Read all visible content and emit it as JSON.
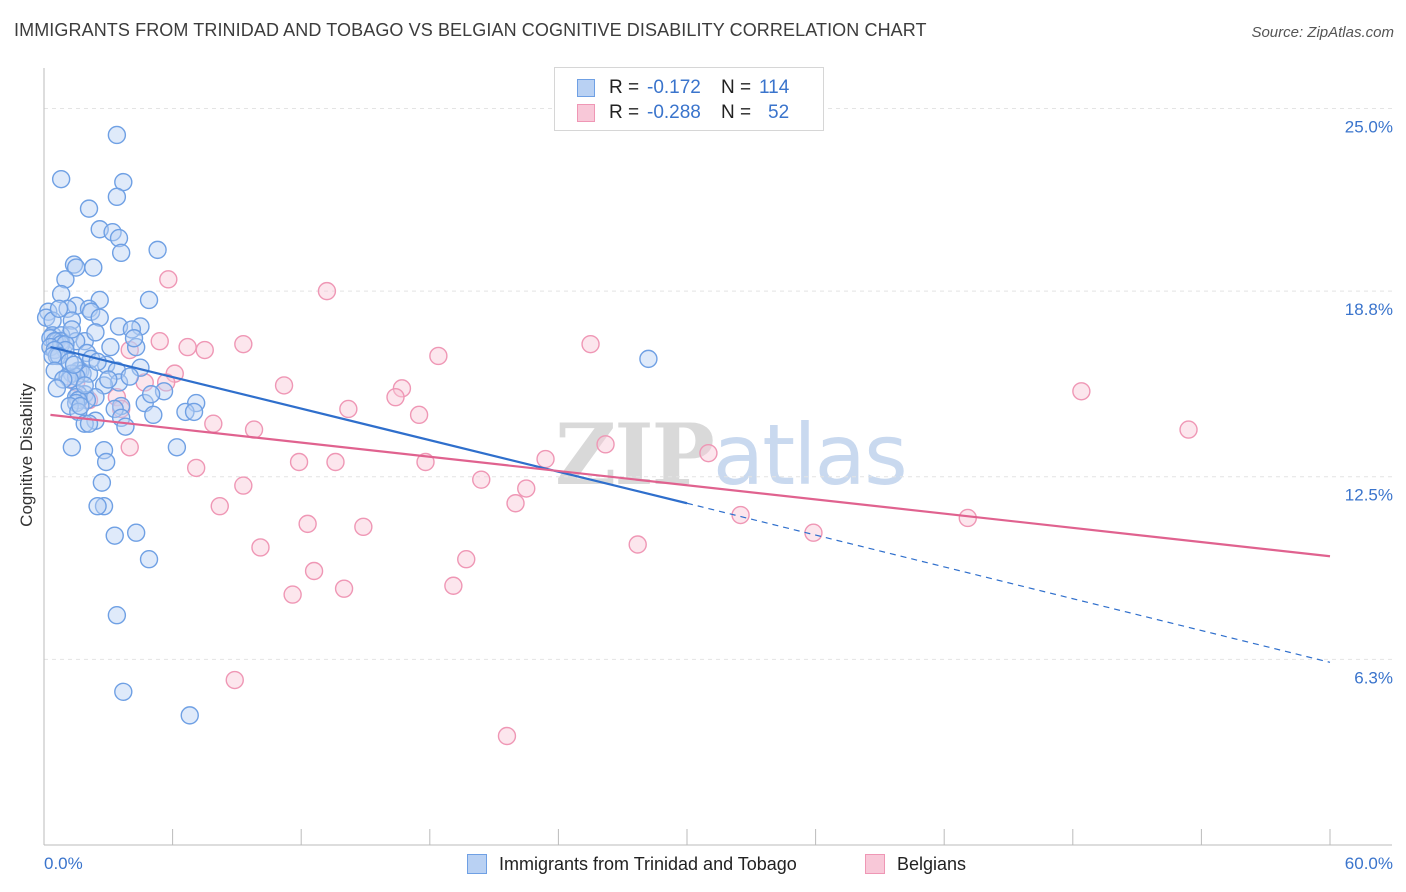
{
  "title": "IMMIGRANTS FROM TRINIDAD AND TOBAGO VS BELGIAN COGNITIVE DISABILITY CORRELATION CHART",
  "source": "Source: ZipAtlas.com",
  "watermark": {
    "zip": "ZIP",
    "atlas": "atlas"
  },
  "legend": {
    "r_label": "R =",
    "n_label": "N =",
    "rows": [
      {
        "name": "Immigrants from Trinidad and Tobago",
        "r": "-0.172",
        "n": "114"
      },
      {
        "name": "Belgians",
        "r": "-0.288",
        "n": "52"
      }
    ]
  },
  "colors": {
    "blue": "#6fa0e4",
    "blue_fill": "#b9d1f3",
    "blue_line": "#2f6fcc",
    "pink": "#ef97b5",
    "pink_fill": "#f8c8d8",
    "pink_line": "#e0628f",
    "tick_label": "#3a74cc"
  },
  "chart_data": {
    "type": "scatter",
    "title": "IMMIGRANTS FROM TRINIDAD AND TOBAGO VS BELGIAN COGNITIVE DISABILITY CORRELATION CHART",
    "xlabel": "",
    "ylabel": "Cognitive Disability",
    "xlim": [
      0,
      60
    ],
    "ylim": [
      0,
      26
    ],
    "x_tick_labels": [
      {
        "value": 0,
        "label": "0.0%"
      },
      {
        "value": 60,
        "label": "60.0%"
      }
    ],
    "y_ticks": [
      {
        "value": 6.3,
        "label": "6.3%"
      },
      {
        "value": 12.5,
        "label": "12.5%"
      },
      {
        "value": 18.8,
        "label": "18.8%"
      },
      {
        "value": 25.0,
        "label": "25.0%"
      }
    ],
    "grid": true,
    "series": [
      {
        "name": "Immigrants from Trinidad and Tobago",
        "color": "#6fa0e4",
        "trend": {
          "x_start": 0.3,
          "y_start": 16.9,
          "x_solid_end": 30.0,
          "y_solid_end": 11.6,
          "x_end": 60.0,
          "y_end": 6.2
        },
        "points": [
          [
            3.4,
            24.1
          ],
          [
            0.8,
            22.6
          ],
          [
            3.7,
            22.5
          ],
          [
            3.4,
            22.0
          ],
          [
            2.1,
            21.6
          ],
          [
            2.6,
            20.9
          ],
          [
            3.2,
            20.8
          ],
          [
            3.5,
            20.6
          ],
          [
            5.3,
            20.2
          ],
          [
            3.6,
            20.1
          ],
          [
            1.4,
            19.7
          ],
          [
            1.5,
            19.6
          ],
          [
            2.3,
            19.6
          ],
          [
            1.0,
            19.2
          ],
          [
            0.8,
            18.7
          ],
          [
            4.9,
            18.5
          ],
          [
            2.6,
            18.5
          ],
          [
            1.5,
            18.3
          ],
          [
            2.1,
            18.2
          ],
          [
            1.1,
            18.2
          ],
          [
            2.2,
            18.1
          ],
          [
            0.2,
            18.1
          ],
          [
            0.1,
            17.9
          ],
          [
            0.4,
            17.8
          ],
          [
            1.3,
            17.8
          ],
          [
            3.5,
            17.6
          ],
          [
            4.5,
            17.6
          ],
          [
            4.1,
            17.5
          ],
          [
            0.4,
            17.3
          ],
          [
            1.2,
            17.3
          ],
          [
            0.8,
            17.3
          ],
          [
            0.3,
            17.2
          ],
          [
            0.6,
            17.1
          ],
          [
            0.8,
            17.1
          ],
          [
            1.9,
            17.1
          ],
          [
            0.5,
            17.1
          ],
          [
            1.5,
            17.1
          ],
          [
            0.8,
            17.0
          ],
          [
            1.0,
            17.0
          ],
          [
            0.3,
            16.9
          ],
          [
            4.3,
            16.9
          ],
          [
            1.0,
            16.8
          ],
          [
            0.5,
            16.8
          ],
          [
            2.0,
            16.7
          ],
          [
            0.6,
            16.6
          ],
          [
            0.7,
            16.6
          ],
          [
            0.4,
            16.6
          ],
          [
            2.9,
            16.3
          ],
          [
            1.7,
            16.1
          ],
          [
            1.6,
            16.1
          ],
          [
            0.5,
            16.1
          ],
          [
            3.4,
            16.1
          ],
          [
            1.8,
            16.0
          ],
          [
            1.3,
            16.0
          ],
          [
            2.1,
            16.0
          ],
          [
            1.1,
            15.9
          ],
          [
            1.5,
            15.9
          ],
          [
            1.2,
            15.8
          ],
          [
            3.5,
            15.7
          ],
          [
            2.8,
            15.6
          ],
          [
            1.9,
            15.3
          ],
          [
            1.6,
            15.3
          ],
          [
            1.5,
            15.2
          ],
          [
            2.4,
            15.2
          ],
          [
            2.0,
            15.1
          ],
          [
            1.6,
            15.1
          ],
          [
            1.5,
            15.0
          ],
          [
            7.1,
            15.0
          ],
          [
            4.7,
            15.0
          ],
          [
            3.6,
            14.9
          ],
          [
            1.2,
            14.9
          ],
          [
            3.3,
            14.8
          ],
          [
            6.6,
            14.7
          ],
          [
            7.0,
            14.7
          ],
          [
            1.6,
            14.7
          ],
          [
            5.1,
            14.6
          ],
          [
            3.6,
            14.5
          ],
          [
            2.4,
            14.4
          ],
          [
            1.9,
            14.3
          ],
          [
            2.1,
            14.3
          ],
          [
            6.2,
            13.5
          ],
          [
            1.3,
            13.5
          ],
          [
            2.8,
            13.4
          ],
          [
            2.9,
            13.0
          ],
          [
            2.7,
            12.3
          ],
          [
            2.8,
            11.5
          ],
          [
            2.5,
            11.5
          ],
          [
            4.3,
            10.6
          ],
          [
            3.3,
            10.5
          ],
          [
            4.9,
            9.7
          ],
          [
            3.4,
            7.8
          ],
          [
            3.7,
            5.2
          ],
          [
            6.8,
            4.4
          ],
          [
            28.2,
            16.5
          ],
          [
            0.7,
            18.2
          ],
          [
            1.3,
            17.5
          ],
          [
            2.6,
            17.9
          ],
          [
            3.0,
            15.8
          ],
          [
            4.5,
            16.2
          ],
          [
            5.6,
            15.4
          ],
          [
            2.2,
            16.5
          ],
          [
            1.9,
            15.6
          ],
          [
            3.8,
            14.2
          ],
          [
            4.0,
            15.9
          ],
          [
            5.0,
            15.3
          ],
          [
            1.2,
            16.4
          ],
          [
            0.9,
            15.8
          ],
          [
            2.4,
            17.4
          ],
          [
            3.1,
            16.9
          ],
          [
            1.7,
            14.9
          ],
          [
            4.2,
            17.2
          ],
          [
            2.5,
            16.4
          ],
          [
            1.4,
            16.3
          ],
          [
            0.6,
            15.5
          ]
        ]
      },
      {
        "name": "Belgians",
        "color": "#ef97b5",
        "trend": {
          "x_start": 0.3,
          "y_start": 14.6,
          "x_end": 60.0,
          "y_end": 9.8
        },
        "points": [
          [
            5.8,
            19.2
          ],
          [
            13.2,
            18.8
          ],
          [
            5.4,
            17.1
          ],
          [
            9.3,
            17.0
          ],
          [
            25.5,
            17.0
          ],
          [
            6.7,
            16.9
          ],
          [
            7.5,
            16.8
          ],
          [
            4.0,
            16.8
          ],
          [
            18.4,
            16.6
          ],
          [
            6.1,
            16.0
          ],
          [
            5.7,
            15.7
          ],
          [
            4.7,
            15.7
          ],
          [
            1.5,
            15.7
          ],
          [
            11.2,
            15.6
          ],
          [
            16.7,
            15.5
          ],
          [
            16.4,
            15.2
          ],
          [
            3.4,
            15.2
          ],
          [
            48.4,
            15.4
          ],
          [
            2.1,
            15.1
          ],
          [
            14.2,
            14.8
          ],
          [
            3.6,
            14.8
          ],
          [
            7.9,
            14.3
          ],
          [
            53.4,
            14.1
          ],
          [
            26.2,
            13.6
          ],
          [
            4.0,
            13.5
          ],
          [
            23.4,
            13.1
          ],
          [
            11.9,
            13.0
          ],
          [
            13.6,
            13.0
          ],
          [
            17.8,
            13.0
          ],
          [
            7.1,
            12.8
          ],
          [
            9.3,
            12.2
          ],
          [
            22.5,
            12.1
          ],
          [
            22.0,
            11.6
          ],
          [
            8.2,
            11.5
          ],
          [
            32.5,
            11.2
          ],
          [
            43.1,
            11.1
          ],
          [
            12.3,
            10.9
          ],
          [
            14.9,
            10.8
          ],
          [
            35.9,
            10.6
          ],
          [
            27.7,
            10.2
          ],
          [
            10.1,
            10.1
          ],
          [
            19.7,
            9.7
          ],
          [
            12.6,
            9.3
          ],
          [
            14.0,
            8.7
          ],
          [
            11.6,
            8.5
          ],
          [
            19.1,
            8.8
          ],
          [
            8.9,
            5.6
          ],
          [
            21.6,
            3.7
          ],
          [
            17.5,
            14.6
          ],
          [
            9.8,
            14.1
          ],
          [
            20.4,
            12.4
          ],
          [
            31.0,
            13.3
          ]
        ]
      }
    ]
  }
}
